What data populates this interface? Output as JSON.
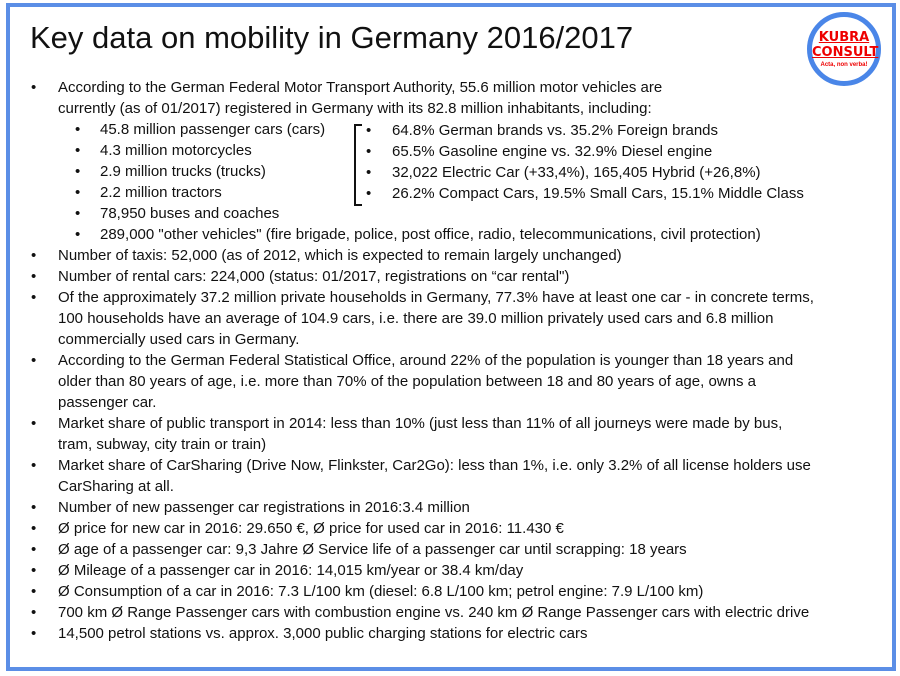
{
  "title": "Key data on mobility in Germany 2016/2017",
  "logo": {
    "line1": "KUBRA",
    "line2": "CONSULT",
    "tagline": "Acta, non verba!",
    "color": "#e00000",
    "ring_color": "#4a86e8"
  },
  "frame_color": "#5b8ee6",
  "intro": {
    "lines": [
      "According to the German Federal Motor Transport Authority, 55.6 million motor vehicles are",
      "currently (as of 01/2017) registered in Germany with its 82.8 million inhabitants, including:"
    ]
  },
  "vehicles": [
    "45.8 million passenger cars (cars)",
    "4.3 million motorcycles",
    "2.9 million trucks (trucks)",
    "2.2 million tractors",
    "78,950 buses and coaches",
    "289,000 \"other vehicles\" (fire brigade, police, post office, radio, telecommunications, civil protection)"
  ],
  "car_details": [
    "64.8% German brands vs. 35.2% Foreign brands",
    "65.5% Gasoline engine vs. 32.9% Diesel engine",
    "32,022 Electric Car (+33,4%), 165,405 Hybrid (+26,8%)",
    "26.2% Compact Cars, 19.5% Small Cars, 15.1% Middle Class"
  ],
  "bullets": [
    {
      "lines": [
        "Number of taxis: 52,000 (as of 2012, which is expected to remain largely unchanged)"
      ]
    },
    {
      "lines": [
        "Number of rental cars: 224,000 (status: 01/2017, registrations on “car rental\")"
      ]
    },
    {
      "lines": [
        "Of the approximately 37.2 million private households in Germany, 77.3% have at least one car - in concrete terms,",
        "100 households have an average of 104.9 cars, i.e. there are 39.0 million privately used cars and 6.8 million",
        "commercially used cars in Germany."
      ]
    },
    {
      "lines": [
        "According to the German Federal Statistical Office, around 22% of the population is younger than 18 years and",
        "older than 80 years of age, i.e. more than 70% of the population between 18 and 80 years of age, owns a",
        "passenger car."
      ]
    },
    {
      "lines": [
        "Market share of public transport in 2014: less than 10% (just less than 11% of all journeys were made by bus,",
        "tram, subway, city train or train)"
      ]
    },
    {
      "lines": [
        "Market share of CarSharing (Drive Now, Flinkster, Car2Go): less than 1%, i.e. only 3.2% of all license holders use",
        "CarSharing at all."
      ]
    },
    {
      "lines": [
        "Number of new passenger car registrations in 2016:3.4 million"
      ]
    },
    {
      "lines": [
        "Ø price for new car in 2016: 29.650 €, Ø price for used car in 2016: 11.430 €"
      ]
    },
    {
      "lines": [
        "Ø age of a passenger car: 9,3 Jahre Ø Service life of a passenger car until scrapping: 18 years"
      ]
    },
    {
      "lines": [
        "Ø Mileage of a passenger car in 2016: 14,015 km/year or 38.4 km/day"
      ]
    },
    {
      "lines": [
        "Ø Consumption of a car in 2016: 7.3 L/100 km (diesel: 6.8 L/100 km; petrol engine: 7.9 L/100 km)"
      ]
    },
    {
      "lines": [
        "700 km Ø Range Passenger cars with combustion engine vs. 240 km Ø Range Passenger cars with electric drive"
      ]
    },
    {
      "lines": [
        "14,500 petrol stations vs. approx. 3,000 public charging stations for electric cars"
      ]
    }
  ]
}
